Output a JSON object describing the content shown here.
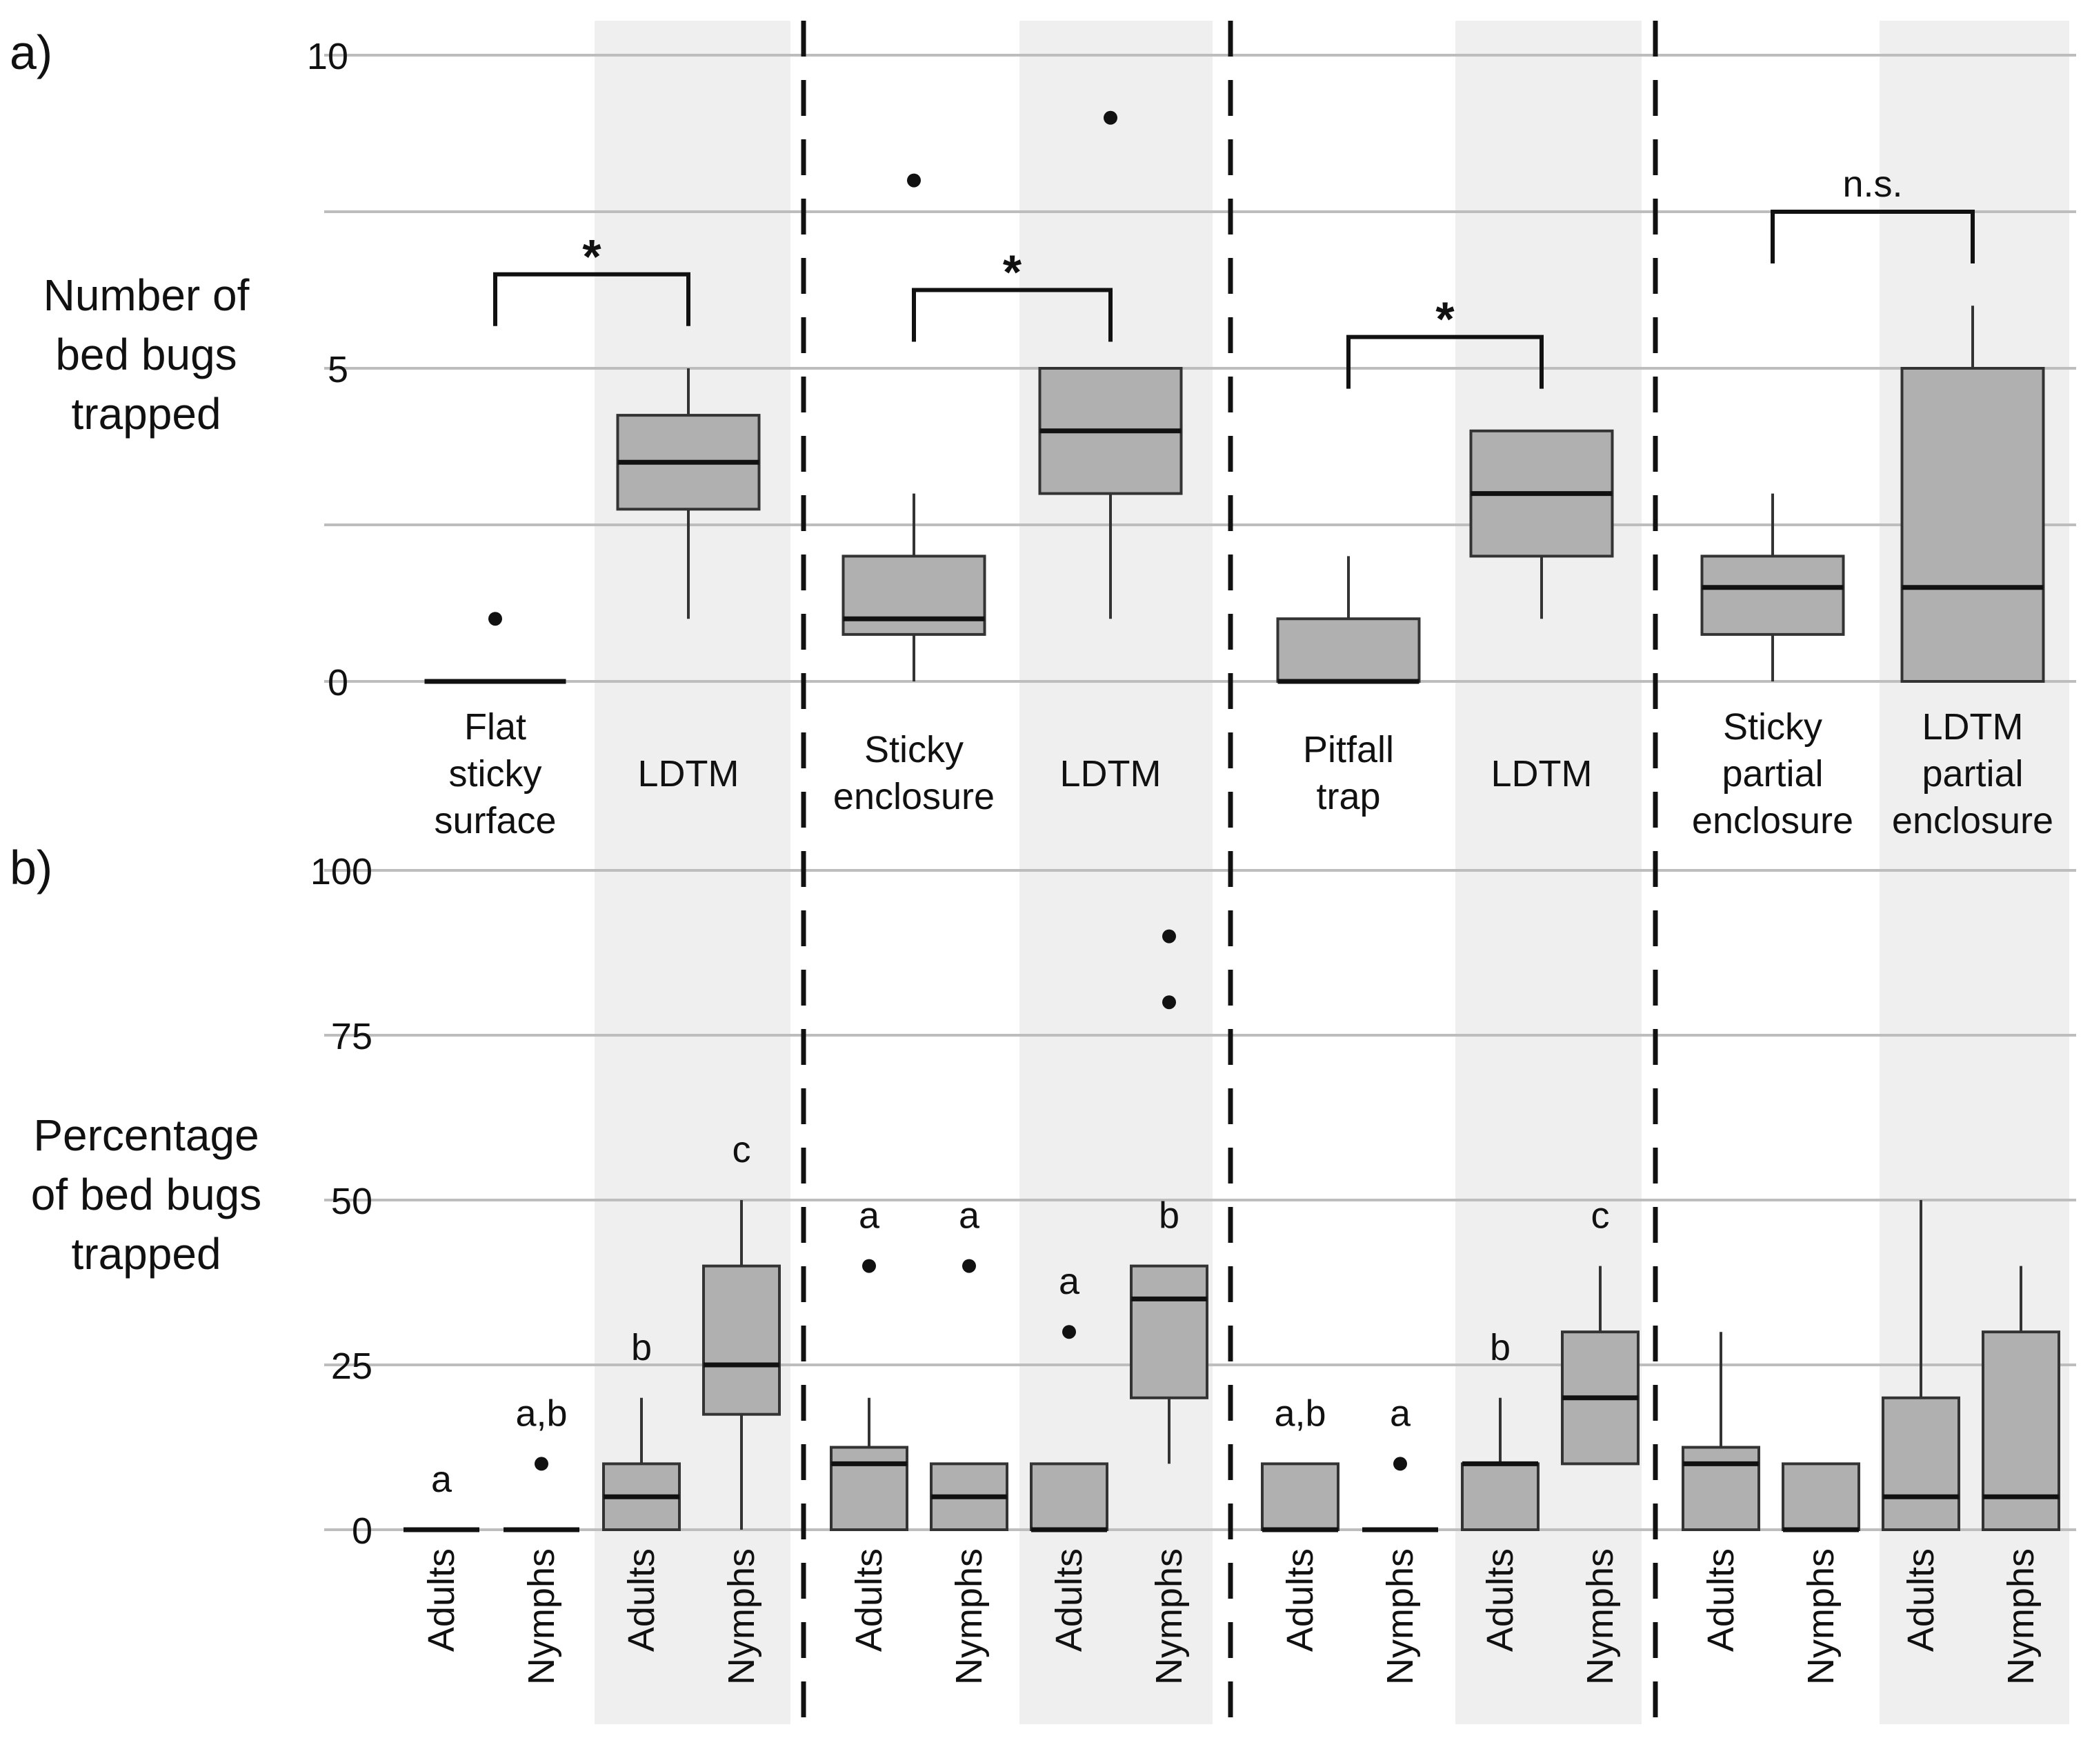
{
  "chart_data": [
    {
      "panel": "a)",
      "type": "box",
      "ylabel": [
        "Number of",
        "bed bugs",
        "trapped"
      ],
      "ylim": [
        0,
        10
      ],
      "yticks": [
        0,
        5,
        10
      ],
      "grid_lines": [
        0,
        2.5,
        5,
        7.5,
        10
      ],
      "groups": [
        {
          "boxes": [
            {
              "label": [
                "Flat",
                "sticky",
                "surface"
              ],
              "shaded": false,
              "min": 0,
              "q1": 0,
              "median": 0,
              "q3": 0,
              "max": 0,
              "outliers": [
                1
              ]
            },
            {
              "label": [
                "LDTM"
              ],
              "shaded": true,
              "min": 1,
              "q1": 2.75,
              "median": 3.5,
              "q3": 4.25,
              "max": 5,
              "outliers": []
            }
          ],
          "comparison": {
            "symbol": "*",
            "level": 6.5
          }
        },
        {
          "boxes": [
            {
              "label": [
                "Sticky",
                "enclosure"
              ],
              "shaded": false,
              "min": 0,
              "q1": 0.75,
              "median": 1,
              "q3": 2,
              "max": 3,
              "outliers": [
                8
              ]
            },
            {
              "label": [
                "LDTM"
              ],
              "shaded": true,
              "min": 1,
              "q1": 3,
              "median": 4,
              "q3": 5,
              "max": 5,
              "outliers": [
                9
              ]
            }
          ],
          "comparison": {
            "symbol": "*",
            "level": 6.25
          }
        },
        {
          "boxes": [
            {
              "label": [
                "Pitfall",
                "trap"
              ],
              "shaded": false,
              "min": 0,
              "q1": 0,
              "median": 0,
              "q3": 1,
              "max": 2,
              "outliers": []
            },
            {
              "label": [
                "LDTM"
              ],
              "shaded": true,
              "min": 1,
              "q1": 2,
              "median": 3,
              "q3": 4,
              "max": 4,
              "outliers": []
            }
          ],
          "comparison": {
            "symbol": "*",
            "level": 5.5
          }
        },
        {
          "boxes": [
            {
              "label": [
                "Sticky",
                "partial",
                "enclosure"
              ],
              "shaded": false,
              "min": 0,
              "q1": 0.75,
              "median": 1.5,
              "q3": 2,
              "max": 3,
              "outliers": []
            },
            {
              "label": [
                "LDTM",
                "partial",
                "enclosure"
              ],
              "shaded": true,
              "min": 0,
              "q1": 0,
              "median": 1.5,
              "q3": 5,
              "max": 6,
              "outliers": []
            }
          ],
          "comparison": {
            "symbol": "n.s.",
            "level": 7.5
          }
        }
      ]
    },
    {
      "panel": "b)",
      "type": "box",
      "ylabel": [
        "Percentage",
        "of bed bugs",
        "trapped"
      ],
      "ylim": [
        0,
        100
      ],
      "yticks": [
        0,
        25,
        50,
        75,
        100
      ],
      "grid_lines": [
        0,
        25,
        50,
        75,
        100
      ],
      "groups": [
        {
          "boxes": [
            {
              "label": "Adults",
              "shaded": false,
              "min": 0,
              "q1": 0,
              "median": 0,
              "q3": 0,
              "max": 0,
              "outliers": [],
              "letter": "a"
            },
            {
              "label": "Nymphs",
              "shaded": false,
              "min": 0,
              "q1": 0,
              "median": 0,
              "q3": 0,
              "max": 0,
              "outliers": [
                10
              ],
              "letter": "a,b"
            },
            {
              "label": "Adults",
              "shaded": true,
              "min": 0,
              "q1": 0,
              "median": 5,
              "q3": 10,
              "max": 20,
              "outliers": [],
              "letter": "b"
            },
            {
              "label": "Nymphs",
              "shaded": true,
              "min": 0,
              "q1": 17.5,
              "median": 25,
              "q3": 40,
              "max": 50,
              "outliers": [],
              "letter": "c"
            }
          ]
        },
        {
          "boxes": [
            {
              "label": "Adults",
              "shaded": false,
              "min": 0,
              "q1": 0,
              "median": 10,
              "q3": 12.5,
              "max": 20,
              "outliers": [
                40
              ],
              "letter": "a"
            },
            {
              "label": "Nymphs",
              "shaded": false,
              "min": 0,
              "q1": 0,
              "median": 5,
              "q3": 10,
              "max": 10,
              "outliers": [
                40
              ],
              "letter": "a"
            },
            {
              "label": "Adults",
              "shaded": true,
              "min": 0,
              "q1": 0,
              "median": 0,
              "q3": 10,
              "max": 10,
              "outliers": [
                30
              ],
              "letter": "a"
            },
            {
              "label": "Nymphs",
              "shaded": true,
              "min": 10,
              "q1": 20,
              "median": 35,
              "q3": 40,
              "max": 40,
              "outliers": [
                80,
                90
              ],
              "letter": "b"
            }
          ]
        },
        {
          "boxes": [
            {
              "label": "Adults",
              "shaded": false,
              "min": 0,
              "q1": 0,
              "median": 0,
              "q3": 10,
              "max": 10,
              "outliers": [],
              "letter": "a,b"
            },
            {
              "label": "Nymphs",
              "shaded": false,
              "min": 0,
              "q1": 0,
              "median": 0,
              "q3": 0,
              "max": 0,
              "outliers": [
                10
              ],
              "letter": "a"
            },
            {
              "label": "Adults",
              "shaded": true,
              "min": 0,
              "q1": 0,
              "median": 10,
              "q3": 10,
              "max": 20,
              "outliers": [],
              "letter": "b"
            },
            {
              "label": "Nymphs",
              "shaded": true,
              "min": 10,
              "q1": 10,
              "median": 20,
              "q3": 30,
              "max": 40,
              "outliers": [],
              "letter": "c"
            }
          ]
        },
        {
          "boxes": [
            {
              "label": "Adults",
              "shaded": false,
              "min": 0,
              "q1": 0,
              "median": 10,
              "q3": 12.5,
              "max": 30,
              "outliers": [],
              "letter": ""
            },
            {
              "label": "Nymphs",
              "shaded": false,
              "min": 0,
              "q1": 0,
              "median": 0,
              "q3": 10,
              "max": 10,
              "outliers": [],
              "letter": ""
            },
            {
              "label": "Adults",
              "shaded": true,
              "min": 0,
              "q1": 0,
              "median": 5,
              "q3": 20,
              "max": 50,
              "outliers": [],
              "letter": ""
            },
            {
              "label": "Nymphs",
              "shaded": true,
              "min": 0,
              "q1": 0,
              "median": 5,
              "q3": 30,
              "max": 40,
              "outliers": [],
              "letter": ""
            }
          ]
        }
      ]
    }
  ],
  "colors": {
    "box_fill": "#b0b0b0",
    "box_stroke": "#333333",
    "shade": "#efefef",
    "grid": "#bdbdbd",
    "divider": "#111111",
    "text": "#111111"
  }
}
